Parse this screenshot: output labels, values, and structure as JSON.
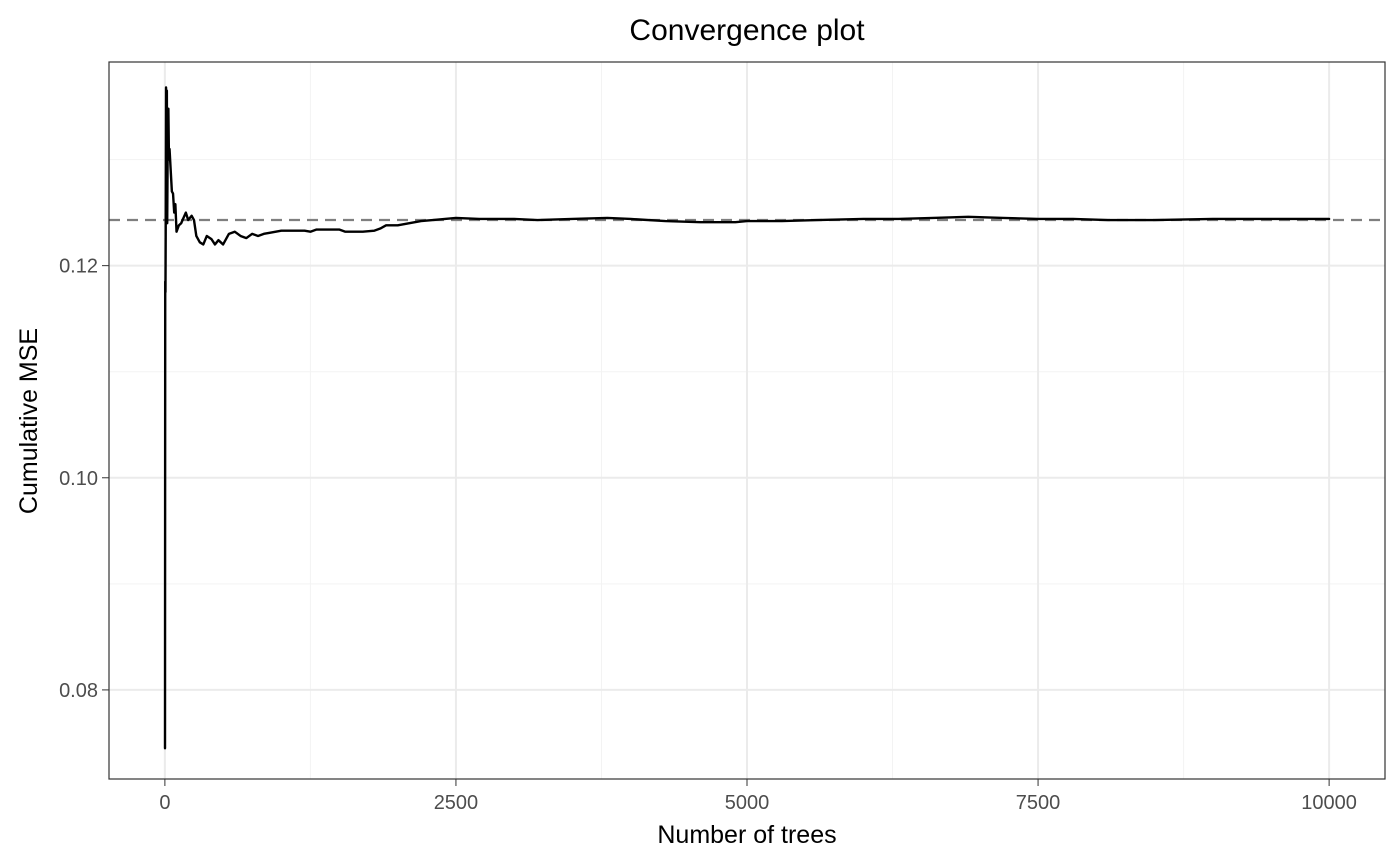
{
  "chart_data": {
    "type": "line",
    "title": "Convergence plot",
    "xlabel": "Number of trees",
    "ylabel": "Cumulative MSE",
    "xlim": [
      -480,
      10480
    ],
    "ylim": [
      0.0716,
      0.1392
    ],
    "x_ticks": [
      0,
      2500,
      5000,
      7500,
      10000
    ],
    "x_tick_labels": [
      "0",
      "2500",
      "5000",
      "7500",
      "10000"
    ],
    "y_ticks": [
      0.08,
      0.1,
      0.12
    ],
    "y_tick_labels": [
      "0.08",
      "0.10",
      "0.12"
    ],
    "grid": true,
    "legend": "none",
    "reference_line": {
      "y": 0.1243,
      "style": "dashed",
      "color": "#7f7f7f"
    },
    "series": [
      {
        "color": "#000000",
        "points": [
          [
            1,
            0.0745
          ],
          [
            3,
            0.1185
          ],
          [
            5,
            0.1175
          ],
          [
            7,
            0.123
          ],
          [
            10,
            0.1368
          ],
          [
            13,
            0.13
          ],
          [
            17,
            0.1365
          ],
          [
            20,
            0.124
          ],
          [
            25,
            0.133
          ],
          [
            30,
            0.1348
          ],
          [
            35,
            0.13
          ],
          [
            40,
            0.131
          ],
          [
            50,
            0.129
          ],
          [
            60,
            0.127
          ],
          [
            70,
            0.1268
          ],
          [
            80,
            0.125
          ],
          [
            90,
            0.1258
          ],
          [
            100,
            0.1232
          ],
          [
            120,
            0.1238
          ],
          [
            140,
            0.124
          ],
          [
            160,
            0.1245
          ],
          [
            180,
            0.125
          ],
          [
            200,
            0.1243
          ],
          [
            230,
            0.1247
          ],
          [
            250,
            0.1243
          ],
          [
            270,
            0.1228
          ],
          [
            300,
            0.1222
          ],
          [
            330,
            0.122
          ],
          [
            360,
            0.1228
          ],
          [
            400,
            0.1225
          ],
          [
            430,
            0.122
          ],
          [
            460,
            0.1224
          ],
          [
            500,
            0.122
          ],
          [
            550,
            0.123
          ],
          [
            600,
            0.1232
          ],
          [
            650,
            0.1228
          ],
          [
            700,
            0.1226
          ],
          [
            750,
            0.123
          ],
          [
            800,
            0.1228
          ],
          [
            850,
            0.123
          ],
          [
            900,
            0.1231
          ],
          [
            1000,
            0.1233
          ],
          [
            1100,
            0.1233
          ],
          [
            1200,
            0.1233
          ],
          [
            1250,
            0.1232
          ],
          [
            1300,
            0.1234
          ],
          [
            1400,
            0.1234
          ],
          [
            1500,
            0.1234
          ],
          [
            1550,
            0.1232
          ],
          [
            1700,
            0.1232
          ],
          [
            1800,
            0.1233
          ],
          [
            1850,
            0.1235
          ],
          [
            1900,
            0.1238
          ],
          [
            2000,
            0.1238
          ],
          [
            2100,
            0.124
          ],
          [
            2200,
            0.1242
          ],
          [
            2300,
            0.1243
          ],
          [
            2500,
            0.1245
          ],
          [
            2700,
            0.1244
          ],
          [
            3000,
            0.1244
          ],
          [
            3200,
            0.1243
          ],
          [
            3500,
            0.1244
          ],
          [
            3800,
            0.1245
          ],
          [
            4000,
            0.1244
          ],
          [
            4300,
            0.1242
          ],
          [
            4600,
            0.1241
          ],
          [
            4900,
            0.1241
          ],
          [
            5000,
            0.1242
          ],
          [
            5300,
            0.1242
          ],
          [
            5600,
            0.1243
          ],
          [
            6000,
            0.1244
          ],
          [
            6300,
            0.1244
          ],
          [
            6600,
            0.1245
          ],
          [
            6900,
            0.1246
          ],
          [
            7200,
            0.1245
          ],
          [
            7500,
            0.1244
          ],
          [
            7800,
            0.1244
          ],
          [
            8100,
            0.1243
          ],
          [
            8500,
            0.1243
          ],
          [
            9000,
            0.1244
          ],
          [
            9500,
            0.1244
          ],
          [
            10000,
            0.1244
          ]
        ]
      }
    ]
  }
}
